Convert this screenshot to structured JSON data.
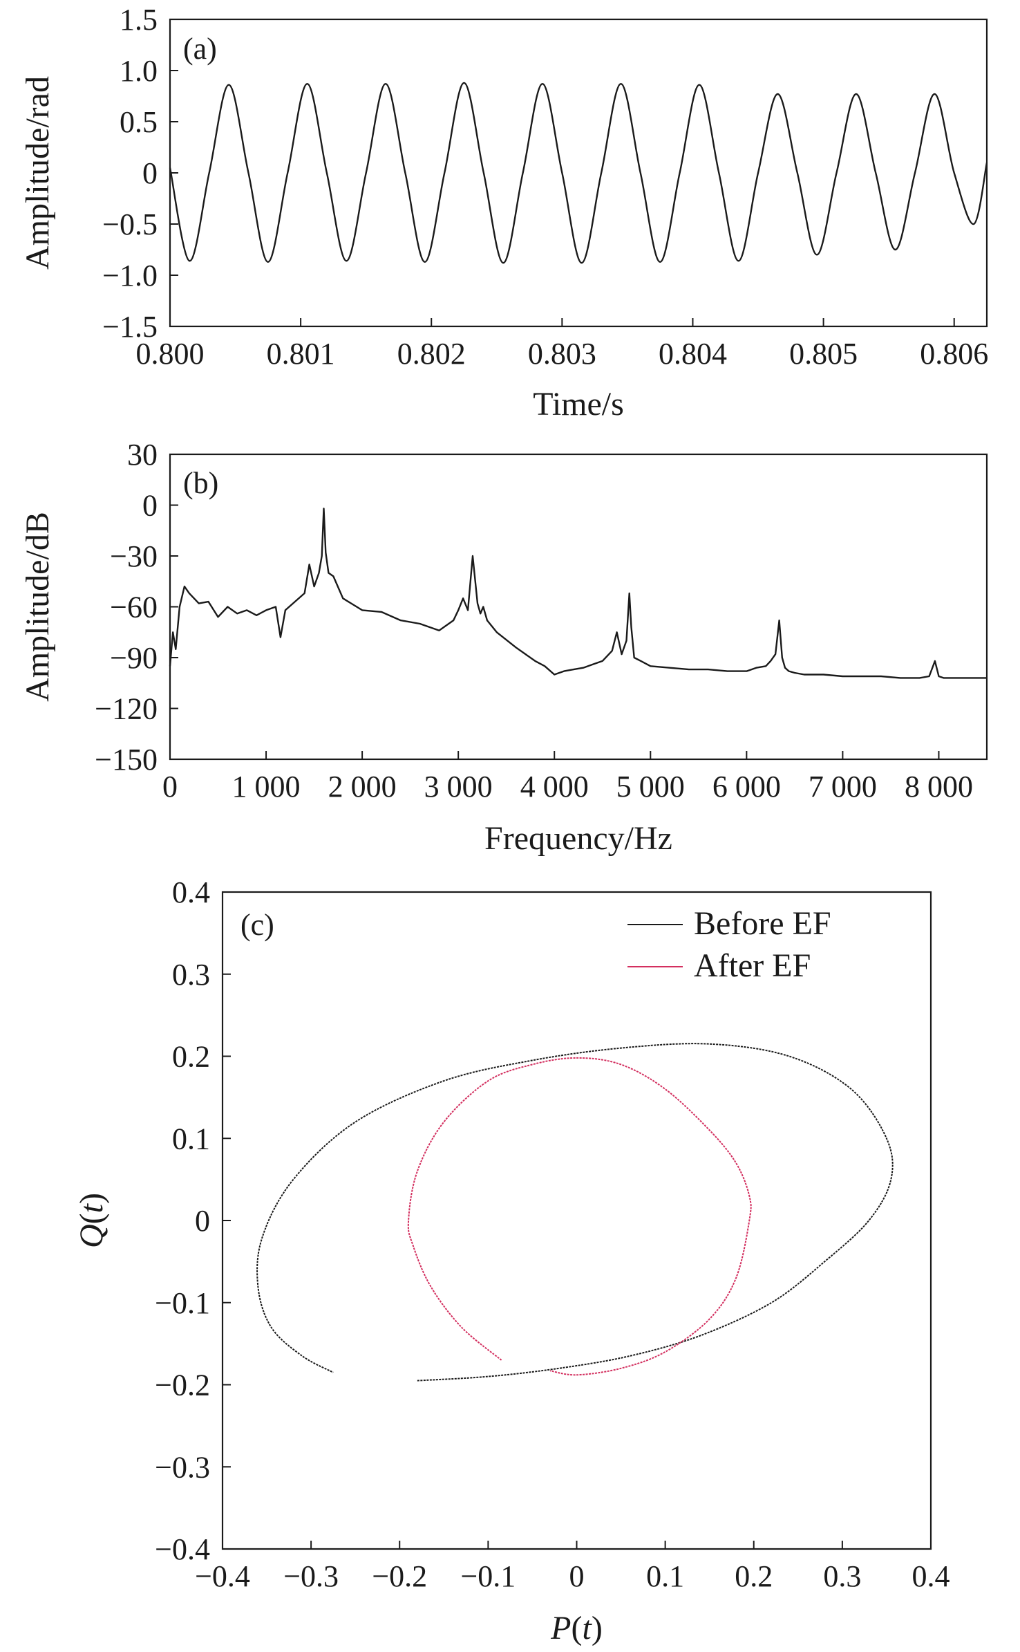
{
  "chart_data": [
    {
      "id": "a",
      "type": "line",
      "panel_label": "(a)",
      "xlabel": "Time/s",
      "ylabel": "Amplitude/rad",
      "xlim": [
        0.8,
        0.80625
      ],
      "ylim": [
        -1.5,
        1.5
      ],
      "xticks": [
        0.8,
        0.801,
        0.802,
        0.803,
        0.804,
        0.805,
        0.806
      ],
      "xtick_labels": [
        "0.800",
        "0.801",
        "0.802",
        "0.803",
        "0.804",
        "0.805",
        "0.806"
      ],
      "yticks": [
        1.5,
        1.0,
        0.5,
        0,
        -0.5,
        -1.0,
        -1.5
      ],
      "ytick_labels": [
        "1.5",
        "1.0",
        "0.5",
        "0",
        "−0.5",
        "−1.0",
        "−1.5"
      ],
      "series": [
        {
          "color": "#1a1a1a",
          "x": [
            0.8,
            0.80015,
            0.8003,
            0.80045,
            0.8006,
            0.80075,
            0.8009,
            0.80105,
            0.8012,
            0.80135,
            0.8015,
            0.80165,
            0.8018,
            0.80195,
            0.8021,
            0.80225,
            0.8024,
            0.80255,
            0.8027,
            0.80285,
            0.803,
            0.80315,
            0.8033,
            0.80345,
            0.8036,
            0.80375,
            0.8039,
            0.80405,
            0.8042,
            0.80435,
            0.8045,
            0.80465,
            0.8048,
            0.80495,
            0.8051,
            0.80525,
            0.8054,
            0.80555,
            0.8057,
            0.80585,
            0.806,
            0.80615,
            0.80625
          ],
          "y": [
            0.05,
            -0.86,
            0.0,
            0.86,
            0.0,
            -0.87,
            0.0,
            0.87,
            0.0,
            -0.86,
            0.0,
            0.87,
            0.0,
            -0.87,
            0.0,
            0.88,
            0.0,
            -0.88,
            0.0,
            0.87,
            0.0,
            -0.88,
            0.0,
            0.87,
            0.0,
            -0.87,
            0.0,
            0.86,
            0.0,
            -0.86,
            0.0,
            0.77,
            0.0,
            -0.8,
            0.0,
            0.77,
            0.0,
            -0.75,
            0.0,
            0.77,
            0.0,
            -0.5,
            0.1
          ]
        }
      ]
    },
    {
      "id": "b",
      "type": "line",
      "panel_label": "(b)",
      "xlabel": "Frequency/Hz",
      "ylabel": "Amplitude/dB",
      "xlim": [
        0,
        8500
      ],
      "ylim": [
        -150,
        30
      ],
      "xticks": [
        0,
        1000,
        2000,
        3000,
        4000,
        5000,
        6000,
        7000,
        8000
      ],
      "xtick_labels": [
        "0",
        "1 000",
        "2 000",
        "3 000",
        "4 000",
        "5 000",
        "6 000",
        "7 000",
        "8 000"
      ],
      "yticks": [
        30,
        0,
        -30,
        -60,
        -90,
        -120,
        -150
      ],
      "ytick_labels": [
        "30",
        "0",
        "−30",
        "−60",
        "−90",
        "−120",
        "−150"
      ],
      "series": [
        {
          "color": "#1a1a1a",
          "x": [
            0,
            30,
            60,
            100,
            150,
            200,
            300,
            400,
            500,
            600,
            700,
            800,
            900,
            1000,
            1100,
            1150,
            1200,
            1300,
            1400,
            1450,
            1500,
            1550,
            1580,
            1600,
            1620,
            1650,
            1700,
            1800,
            2000,
            2200,
            2400,
            2600,
            2800,
            2950,
            3000,
            3050,
            3100,
            3150,
            3200,
            3230,
            3260,
            3300,
            3400,
            3600,
            3800,
            3900,
            4000,
            4100,
            4200,
            4300,
            4400,
            4500,
            4600,
            4650,
            4700,
            4750,
            4780,
            4800,
            4830,
            4900,
            5000,
            5200,
            5400,
            5600,
            5800,
            6000,
            6100,
            6200,
            6250,
            6300,
            6340,
            6370,
            6400,
            6440,
            6500,
            6600,
            6800,
            7000,
            7200,
            7400,
            7600,
            7800,
            7900,
            7960,
            8000,
            8050,
            8100,
            8200,
            8350,
            8500
          ],
          "y": [
            -95,
            -75,
            -85,
            -60,
            -48,
            -52,
            -58,
            -57,
            -66,
            -60,
            -64,
            -62,
            -65,
            -62,
            -60,
            -78,
            -62,
            -57,
            -52,
            -35,
            -48,
            -40,
            -30,
            -2,
            -28,
            -40,
            -42,
            -55,
            -62,
            -63,
            -68,
            -70,
            -74,
            -68,
            -62,
            -55,
            -62,
            -30,
            -58,
            -64,
            -60,
            -68,
            -75,
            -84,
            -92,
            -95,
            -100,
            -98,
            -97,
            -96,
            -94,
            -92,
            -86,
            -75,
            -88,
            -80,
            -52,
            -72,
            -90,
            -92,
            -95,
            -96,
            -97,
            -97,
            -98,
            -98,
            -96,
            -95,
            -92,
            -88,
            -68,
            -90,
            -96,
            -98,
            -99,
            -100,
            -100,
            -101,
            -101,
            -101,
            -102,
            -102,
            -101,
            -92,
            -101,
            -102,
            -102,
            -102,
            -102,
            -102
          ]
        }
      ]
    },
    {
      "id": "c",
      "type": "line",
      "panel_label": "(c)",
      "xlabel_func": "P",
      "xlabel_arg": "t",
      "ylabel_func": "Q",
      "ylabel_arg": "t",
      "xlim": [
        -0.4,
        0.4
      ],
      "ylim": [
        -0.4,
        0.4
      ],
      "xticks": [
        -0.4,
        -0.3,
        -0.2,
        -0.1,
        0,
        0.1,
        0.2,
        0.3,
        0.4
      ],
      "xtick_labels": [
        "−0.4",
        "−0.3",
        "−0.2",
        "−0.1",
        "0",
        "0.1",
        "0.2",
        "0.3",
        "0.4"
      ],
      "yticks": [
        0.4,
        0.3,
        0.2,
        0.1,
        0,
        -0.1,
        -0.2,
        -0.3,
        -0.4
      ],
      "ytick_labels": [
        "0.4",
        "0.3",
        "0.2",
        "0.1",
        "0",
        "−0.1",
        "−0.2",
        "−0.3",
        "−0.4"
      ],
      "legend_position": "top-right",
      "series": [
        {
          "name": "Before EF",
          "color": "#1a1a1a",
          "x": [
            -0.18,
            -0.1,
            -0.02,
            0.06,
            0.14,
            0.22,
            0.28,
            0.33,
            0.355,
            0.35,
            0.31,
            0.24,
            0.15,
            0.05,
            -0.05,
            -0.15,
            -0.25,
            -0.32,
            -0.355,
            -0.36,
            -0.345,
            -0.31,
            -0.275
          ],
          "y": [
            -0.195,
            -0.19,
            -0.18,
            -0.165,
            -0.14,
            -0.1,
            -0.05,
            0.0,
            0.05,
            0.1,
            0.16,
            0.2,
            0.215,
            0.21,
            0.195,
            0.17,
            0.12,
            0.05,
            -0.02,
            -0.08,
            -0.13,
            -0.165,
            -0.185
          ]
        },
        {
          "name": "After EF",
          "color": "#d32f5f",
          "x": [
            -0.085,
            -0.13,
            -0.165,
            -0.185,
            -0.19,
            -0.18,
            -0.15,
            -0.1,
            -0.05,
            0.0,
            0.05,
            0.1,
            0.15,
            0.18,
            0.195,
            0.195,
            0.18,
            0.15,
            0.1,
            0.05,
            0.0,
            -0.03
          ],
          "y": [
            -0.17,
            -0.13,
            -0.08,
            -0.03,
            0.0,
            0.06,
            0.12,
            0.17,
            0.19,
            0.198,
            0.19,
            0.16,
            0.11,
            0.07,
            0.03,
            0.0,
            -0.07,
            -0.12,
            -0.16,
            -0.18,
            -0.188,
            -0.183
          ]
        }
      ]
    }
  ]
}
